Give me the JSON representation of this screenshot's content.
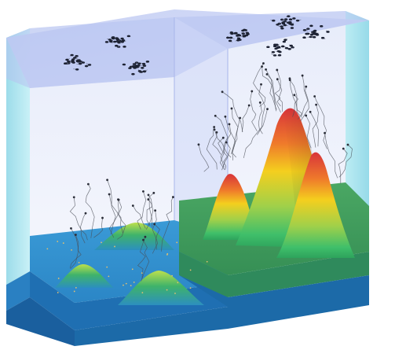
{
  "figure": {
    "panels": [
      {
        "id": "left",
        "peaks": 3,
        "terrain": "low-elevation"
      },
      {
        "id": "right",
        "peaks": 3,
        "terrain": "high-elevation"
      }
    ],
    "colors": {
      "box_top": "#c9d2f5",
      "box_wall": "#dfe4f8",
      "box_side": "#8fd8e6",
      "left_water": "#2f8fd0",
      "left_base": "#1f6fb2",
      "right_plateau": "#3c9b5a",
      "right_plateau_front": "#2f8a5c",
      "peak_high": "#d23a2a",
      "peak_mid": "#f2c21a",
      "peak_low": "#4fc070",
      "trajectory": "#4a4d57"
    },
    "style": "3d-perspective-box-illustration"
  }
}
